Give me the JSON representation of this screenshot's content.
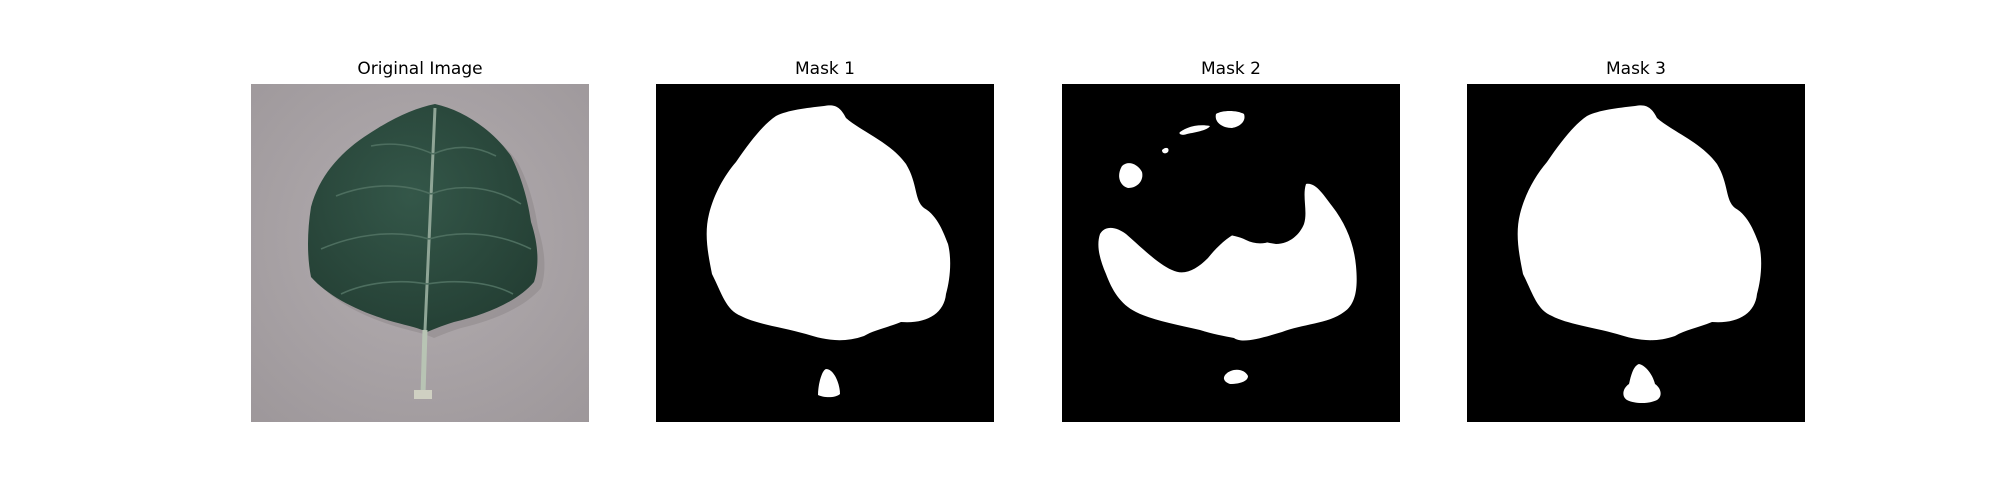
{
  "panels": [
    {
      "title": "Original Image",
      "icon": "leaf-photo"
    },
    {
      "title": "Mask 1",
      "icon": "segmentation-mask"
    },
    {
      "title": "Mask 2",
      "icon": "segmentation-mask"
    },
    {
      "title": "Mask 3",
      "icon": "segmentation-mask"
    }
  ],
  "colors": {
    "background": "#ffffff",
    "mask_foreground": "#ffffff",
    "mask_background": "#000000",
    "leaf": "#2c4a3e",
    "photo_background": "#a9a3a6"
  }
}
